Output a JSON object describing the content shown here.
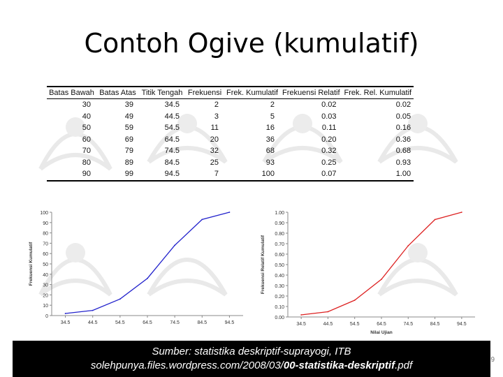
{
  "slide": {
    "title": "Contoh Ogive (kumulatif)",
    "source_line1": "Sumber: statistika deskriptif-suprayogi, ITB",
    "source_line2_prefix": "solehpunya.files.wordpress.com/2008/03/",
    "source_line2_bold": "00-statistika-deskriptif",
    "source_line2_suffix": ".pdf",
    "page_number": "9"
  },
  "table": {
    "headers": [
      "Batas Bawah",
      "Batas Atas",
      "Titik Tengah",
      "Frekuensi",
      "Frek. Kumulatif",
      "Frekuensi Relatif",
      "Frek. Rel. Kumulatif"
    ],
    "rows": [
      [
        "30",
        "39",
        "34.5",
        "2",
        "2",
        "0.02",
        "0.02"
      ],
      [
        "40",
        "49",
        "44.5",
        "3",
        "5",
        "0.03",
        "0.05"
      ],
      [
        "50",
        "59",
        "54.5",
        "11",
        "16",
        "0.11",
        "0.16"
      ],
      [
        "60",
        "69",
        "64.5",
        "20",
        "36",
        "0.20",
        "0.36"
      ],
      [
        "70",
        "79",
        "74.5",
        "32",
        "68",
        "0.32",
        "0.68"
      ],
      [
        "80",
        "89",
        "84.5",
        "25",
        "93",
        "0.25",
        "0.93"
      ],
      [
        "90",
        "99",
        "94.5",
        "7",
        "100",
        "0.07",
        "1.00"
      ]
    ]
  },
  "chart_data": [
    {
      "type": "line",
      "x": [
        "34.5",
        "44.5",
        "54.5",
        "64.5",
        "74.5",
        "84.5",
        "94.5"
      ],
      "series": [
        {
          "values": [
            2,
            5,
            16,
            36,
            68,
            93,
            100
          ],
          "color": "#2222cc"
        }
      ],
      "ylabel": "Frekuensi Kumulatif",
      "xlabel": "",
      "ylim": [
        0,
        100
      ],
      "yticks": [
        "0",
        "10",
        "20",
        "30",
        "40",
        "50",
        "60",
        "70",
        "80",
        "90",
        "100"
      ],
      "grid": false
    },
    {
      "type": "line",
      "x": [
        "34.5",
        "44.5",
        "54.5",
        "64.5",
        "74.5",
        "84.5",
        "94.5"
      ],
      "series": [
        {
          "values": [
            0.02,
            0.05,
            0.16,
            0.36,
            0.68,
            0.93,
            1.0
          ],
          "color": "#dd2222"
        }
      ],
      "ylabel": "Frekuensi Relatif Kumulatif",
      "xlabel": "Nilai Ujian",
      "ylim": [
        0,
        1
      ],
      "yticks": [
        "0.00",
        "0.10",
        "0.20",
        "0.30",
        "0.40",
        "0.50",
        "0.60",
        "0.70",
        "0.80",
        "0.90",
        "1.00"
      ],
      "grid": false
    }
  ]
}
